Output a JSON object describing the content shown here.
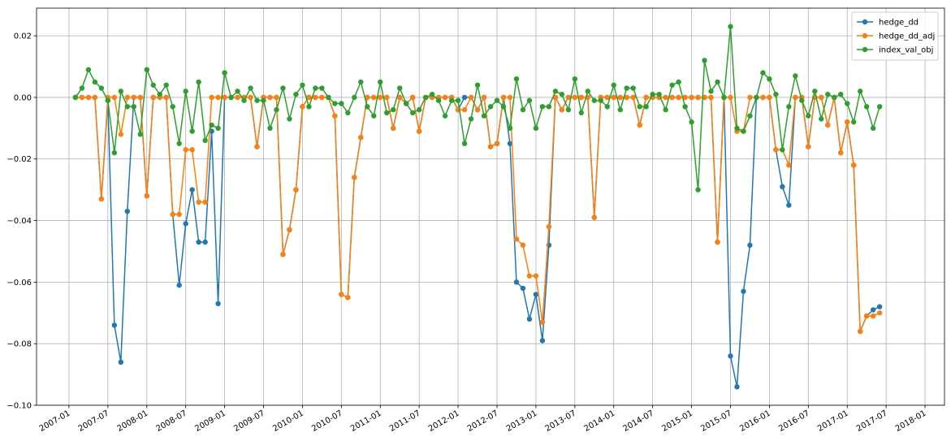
{
  "chart_data": {
    "type": "line",
    "x": [
      "2007-02",
      "2007-03",
      "2007-04",
      "2007-05",
      "2007-06",
      "2007-07",
      "2007-08",
      "2007-09",
      "2007-10",
      "2007-11",
      "2007-12",
      "2008-01",
      "2008-02",
      "2008-03",
      "2008-04",
      "2008-05",
      "2008-06",
      "2008-07",
      "2008-08",
      "2008-09",
      "2008-10",
      "2008-11",
      "2008-12",
      "2009-01",
      "2009-02",
      "2009-03",
      "2009-04",
      "2009-05",
      "2009-06",
      "2009-07",
      "2009-08",
      "2009-09",
      "2009-10",
      "2009-11",
      "2009-12",
      "2010-01",
      "2010-02",
      "2010-03",
      "2010-04",
      "2010-05",
      "2010-06",
      "2010-07",
      "2010-08",
      "2010-09",
      "2010-10",
      "2010-11",
      "2010-12",
      "2011-01",
      "2011-02",
      "2011-03",
      "2011-04",
      "2011-05",
      "2011-06",
      "2011-07",
      "2011-08",
      "2011-09",
      "2011-10",
      "2011-11",
      "2011-12",
      "2012-01",
      "2012-02",
      "2012-03",
      "2012-04",
      "2012-05",
      "2012-06",
      "2012-07",
      "2012-08",
      "2012-09",
      "2012-10",
      "2012-11",
      "2012-12",
      "2013-01",
      "2013-02",
      "2013-03",
      "2013-04",
      "2013-05",
      "2013-06",
      "2013-07",
      "2013-08",
      "2013-09",
      "2013-10",
      "2013-11",
      "2013-12",
      "2014-01",
      "2014-02",
      "2014-03",
      "2014-04",
      "2014-05",
      "2014-06",
      "2014-07",
      "2014-08",
      "2014-09",
      "2014-10",
      "2014-11",
      "2014-12",
      "2015-01",
      "2015-02",
      "2015-03",
      "2015-04",
      "2015-05",
      "2015-06",
      "2015-07",
      "2015-08",
      "2015-09",
      "2015-10",
      "2015-11",
      "2015-12",
      "2016-01",
      "2016-02",
      "2016-03",
      "2016-04",
      "2016-05",
      "2016-06",
      "2016-07",
      "2016-08",
      "2016-09",
      "2016-10",
      "2016-11",
      "2016-12",
      "2017-01",
      "2017-02",
      "2017-03",
      "2017-04",
      "2017-05",
      "2017-06"
    ],
    "series": [
      {
        "name": "hedge_dd",
        "color": "#1f77b4",
        "values": [
          0,
          0,
          0,
          0,
          -0.033,
          -0.001,
          -0.074,
          -0.086,
          -0.037,
          0,
          0,
          -0.032,
          0,
          0,
          0,
          -0.038,
          -0.061,
          -0.041,
          -0.03,
          -0.047,
          -0.047,
          -0.011,
          -0.067,
          0,
          0,
          0,
          0,
          0,
          -0.016,
          0,
          0,
          0,
          -0.051,
          -0.043,
          -0.03,
          -0.003,
          0,
          0,
          0,
          0,
          -0.006,
          -0.064,
          -0.065,
          -0.026,
          -0.013,
          0,
          0,
          0,
          0,
          -0.01,
          0,
          -0.002,
          0,
          -0.011,
          0,
          0,
          0,
          0,
          0,
          -0.004,
          0,
          0,
          -0.004,
          0,
          -0.016,
          -0.015,
          0,
          -0.015,
          -0.06,
          -0.062,
          -0.072,
          -0.064,
          -0.079,
          -0.048,
          0,
          -0.004,
          0,
          0,
          0,
          0,
          -0.039,
          0,
          0,
          0,
          0,
          0,
          0,
          -0.009,
          0,
          0,
          0,
          0,
          0,
          0,
          0,
          0,
          0,
          0,
          0,
          -0.047,
          0,
          -0.084,
          -0.094,
          -0.063,
          -0.048,
          0,
          0,
          0,
          -0.017,
          -0.029,
          -0.035,
          0,
          0,
          -0.016,
          0,
          0,
          -0.009,
          0,
          -0.018,
          -0.008,
          -0.022,
          -0.076,
          -0.071,
          -0.069,
          -0.068
        ]
      },
      {
        "name": "hedge_dd_adj",
        "color": "#ff7f0e",
        "values": [
          0,
          0,
          0,
          0,
          -0.033,
          0,
          0,
          -0.012,
          0,
          0,
          0,
          -0.032,
          0,
          0,
          0,
          -0.038,
          -0.038,
          -0.017,
          -0.017,
          -0.034,
          -0.034,
          0,
          0,
          0,
          0,
          0,
          0,
          0,
          -0.016,
          0,
          0,
          0,
          -0.051,
          -0.043,
          -0.03,
          -0.003,
          0,
          0,
          0,
          0,
          -0.006,
          -0.064,
          -0.065,
          -0.026,
          -0.013,
          0,
          0,
          0,
          0,
          -0.01,
          0,
          -0.002,
          0,
          -0.011,
          0,
          0,
          0,
          0,
          0,
          -0.004,
          -0.004,
          0,
          -0.004,
          0,
          -0.016,
          -0.015,
          0,
          0,
          -0.046,
          -0.048,
          -0.058,
          -0.058,
          -0.073,
          -0.042,
          0,
          -0.004,
          0,
          0,
          0,
          0,
          -0.039,
          0,
          0,
          0,
          0,
          0,
          0,
          -0.009,
          0,
          0,
          0,
          0,
          0,
          0,
          0,
          0,
          0,
          0,
          0,
          -0.047,
          0,
          0,
          -0.011,
          -0.011,
          0,
          0,
          0,
          0,
          -0.017,
          -0.017,
          -0.022,
          0,
          0,
          -0.016,
          0,
          0,
          -0.009,
          0,
          -0.018,
          -0.008,
          -0.022,
          -0.076,
          -0.071,
          -0.071,
          -0.07
        ]
      },
      {
        "name": "index_val_obj",
        "color": "#2ca02c",
        "values": [
          0,
          0.003,
          0.009,
          0.005,
          0.003,
          -0.001,
          -0.018,
          0.002,
          -0.003,
          -0.003,
          -0.012,
          0.009,
          0.004,
          0.001,
          0.004,
          -0.003,
          -0.015,
          0.002,
          -0.011,
          0.005,
          -0.014,
          -0.009,
          -0.01,
          0.008,
          0,
          0.002,
          -0.001,
          0.003,
          -0.001,
          -0.001,
          -0.01,
          -0.004,
          0.003,
          -0.007,
          0.001,
          0.004,
          -0.003,
          0.003,
          0.003,
          0,
          -0.002,
          -0.002,
          -0.005,
          0,
          0.005,
          -0.003,
          -0.006,
          0.005,
          -0.005,
          -0.004,
          0.003,
          -0.002,
          -0.005,
          -0.004,
          0,
          0.001,
          -0.001,
          -0.006,
          -0.001,
          -0.001,
          -0.015,
          -0.007,
          0.004,
          -0.006,
          -0.003,
          -0.001,
          -0.003,
          -0.01,
          0.006,
          -0.004,
          -0.001,
          -0.01,
          -0.003,
          -0.003,
          0.002,
          0.001,
          -0.004,
          0.006,
          -0.005,
          0.002,
          -0.001,
          -0.001,
          -0.003,
          0.004,
          -0.004,
          0.003,
          0.003,
          -0.003,
          -0.003,
          0.001,
          0.001,
          -0.004,
          0.004,
          0.005,
          -0.003,
          -0.008,
          -0.03,
          0.012,
          0.002,
          0.005,
          0,
          0.023,
          -0.01,
          -0.011,
          -0.006,
          0,
          0.008,
          0.006,
          0.001,
          -0.017,
          -0.003,
          0.007,
          -0.001,
          -0.006,
          0.002,
          -0.007,
          0.001,
          0,
          0.001,
          -0.002,
          -0.008,
          0.002,
          -0.003,
          -0.01,
          -0.003
        ]
      }
    ],
    "xlim": [
      "2006-08",
      "2018-04"
    ],
    "xticks": [
      "2007-01",
      "2007-07",
      "2008-01",
      "2008-07",
      "2009-01",
      "2009-07",
      "2010-01",
      "2010-07",
      "2011-01",
      "2011-07",
      "2012-01",
      "2012-07",
      "2013-01",
      "2013-07",
      "2014-01",
      "2014-07",
      "2015-01",
      "2015-07",
      "2016-01",
      "2016-07",
      "2017-01",
      "2017-07",
      "2018-01"
    ],
    "ylim": [
      -0.1,
      0.029
    ],
    "yticks": [
      {
        "value": -0.1,
        "label": "−0.10"
      },
      {
        "value": -0.08,
        "label": "−0.08"
      },
      {
        "value": -0.06,
        "label": "−0.06"
      },
      {
        "value": -0.04,
        "label": "−0.04"
      },
      {
        "value": -0.02,
        "label": "−0.02"
      },
      {
        "value": 0,
        "label": "0.00"
      },
      {
        "value": 0.02,
        "label": "0.02"
      }
    ],
    "grid": true,
    "legend": "upper right"
  }
}
